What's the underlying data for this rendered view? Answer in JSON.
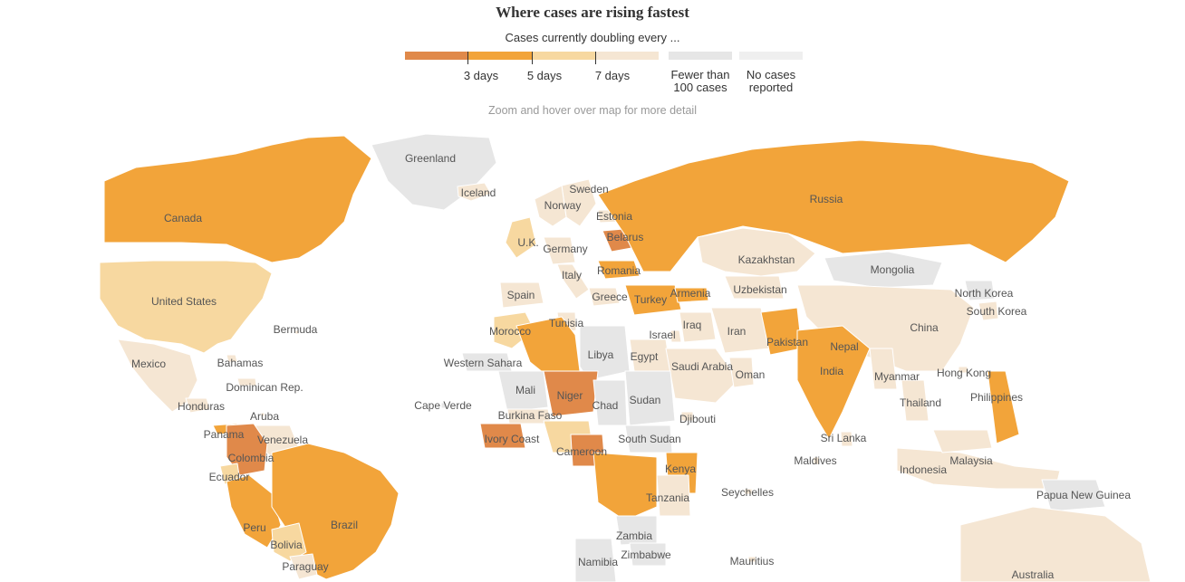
{
  "header": {
    "title": "Where cases are rising fastest",
    "subtitle": "Cases currently doubling every ...",
    "note": "Zoom and hover over map for more detail"
  },
  "legend": {
    "ticks": [
      "3 days",
      "5 days",
      "7 days"
    ],
    "fewer": "Fewer than 100 cases",
    "none": "No cases reported"
  },
  "colors": {
    "darkest": "#e0894a",
    "dark": "#f2a43a",
    "mid": "#f7d8a0",
    "light": "#f5e6d3",
    "gray": "#e6e6e6",
    "none": "#efefef",
    "ocean": "#ffffff"
  },
  "map": {
    "countries": [
      {
        "id": "greenland",
        "label": "Greenland",
        "cat": "gray"
      },
      {
        "id": "iceland",
        "label": "Iceland",
        "cat": "light"
      },
      {
        "id": "canada",
        "label": "Canada",
        "cat": "dark"
      },
      {
        "id": "us",
        "label": "United States",
        "cat": "mid"
      },
      {
        "id": "mexico",
        "label": "Mexico",
        "cat": "light"
      },
      {
        "id": "bermuda",
        "label": "Bermuda",
        "cat": "light"
      },
      {
        "id": "bahamas",
        "label": "Bahamas",
        "cat": "light"
      },
      {
        "id": "dominican",
        "label": "Dominican Rep.",
        "cat": "light"
      },
      {
        "id": "honduras",
        "label": "Honduras",
        "cat": "light"
      },
      {
        "id": "panama",
        "label": "Panama",
        "cat": "dark"
      },
      {
        "id": "aruba",
        "label": "Aruba",
        "cat": "light"
      },
      {
        "id": "venezuela",
        "label": "Venezuela",
        "cat": "light"
      },
      {
        "id": "colombia",
        "label": "Colombia",
        "cat": "darkest"
      },
      {
        "id": "ecuador",
        "label": "Ecuador",
        "cat": "mid"
      },
      {
        "id": "peru",
        "label": "Peru",
        "cat": "dark"
      },
      {
        "id": "brazil",
        "label": "Brazil",
        "cat": "dark"
      },
      {
        "id": "bolivia",
        "label": "Bolivia",
        "cat": "mid"
      },
      {
        "id": "paraguay",
        "label": "Paraguay",
        "cat": "light"
      },
      {
        "id": "uk",
        "label": "U.K.",
        "cat": "mid"
      },
      {
        "id": "sweden",
        "label": "Sweden",
        "cat": "light"
      },
      {
        "id": "norway",
        "label": "Norway",
        "cat": "light"
      },
      {
        "id": "estonia",
        "label": "Estonia",
        "cat": "light"
      },
      {
        "id": "belarus",
        "label": "Belarus",
        "cat": "darkest"
      },
      {
        "id": "germany",
        "label": "Germany",
        "cat": "light"
      },
      {
        "id": "italy",
        "label": "Italy",
        "cat": "light"
      },
      {
        "id": "romania",
        "label": "Romania",
        "cat": "dark"
      },
      {
        "id": "spain",
        "label": "Spain",
        "cat": "light"
      },
      {
        "id": "greece",
        "label": "Greece",
        "cat": "light"
      },
      {
        "id": "turkey",
        "label": "Turkey",
        "cat": "dark"
      },
      {
        "id": "armenia",
        "label": "Armenia",
        "cat": "dark"
      },
      {
        "id": "russia",
        "label": "Russia",
        "cat": "dark"
      },
      {
        "id": "kazakhstan",
        "label": "Kazakhstan",
        "cat": "light"
      },
      {
        "id": "mongolia",
        "label": "Mongolia",
        "cat": "gray"
      },
      {
        "id": "uzbekistan",
        "label": "Uzbekistan",
        "cat": "light"
      },
      {
        "id": "northkorea",
        "label": "North Korea",
        "cat": "gray"
      },
      {
        "id": "southkorea",
        "label": "South Korea",
        "cat": "light"
      },
      {
        "id": "china",
        "label": "China",
        "cat": "light"
      },
      {
        "id": "morocco",
        "label": "Morocco",
        "cat": "mid"
      },
      {
        "id": "tunisia",
        "label": "Tunisia",
        "cat": "light"
      },
      {
        "id": "algeria",
        "label": "",
        "cat": "dark"
      },
      {
        "id": "libya",
        "label": "Libya",
        "cat": "gray"
      },
      {
        "id": "egypt",
        "label": "Egypt",
        "cat": "light"
      },
      {
        "id": "israel",
        "label": "Israel",
        "cat": "light"
      },
      {
        "id": "iraq",
        "label": "Iraq",
        "cat": "light"
      },
      {
        "id": "iran",
        "label": "Iran",
        "cat": "light"
      },
      {
        "id": "pakistan",
        "label": "Pakistan",
        "cat": "dark"
      },
      {
        "id": "nepal",
        "label": "Nepal",
        "cat": "light"
      },
      {
        "id": "india",
        "label": "India",
        "cat": "dark"
      },
      {
        "id": "saudi",
        "label": "Saudi Arabia",
        "cat": "light"
      },
      {
        "id": "oman",
        "label": "Oman",
        "cat": "light"
      },
      {
        "id": "myanmar",
        "label": "Myanmar",
        "cat": "light"
      },
      {
        "id": "hongkong",
        "label": "Hong Kong",
        "cat": "light"
      },
      {
        "id": "thailand",
        "label": "Thailand",
        "cat": "light"
      },
      {
        "id": "philippines",
        "label": "Philippines",
        "cat": "dark"
      },
      {
        "id": "westernsahara",
        "label": "Western Sahara",
        "cat": "gray"
      },
      {
        "id": "mali",
        "label": "Mali",
        "cat": "gray"
      },
      {
        "id": "niger",
        "label": "Niger",
        "cat": "darkest"
      },
      {
        "id": "chad",
        "label": "Chad",
        "cat": "gray"
      },
      {
        "id": "sudan",
        "label": "Sudan",
        "cat": "gray"
      },
      {
        "id": "capeverde",
        "label": "Cape Verde",
        "cat": "gray"
      },
      {
        "id": "burkina",
        "label": "Burkina Faso",
        "cat": "light"
      },
      {
        "id": "nigeria",
        "label": "",
        "cat": "mid"
      },
      {
        "id": "djibouti",
        "label": "Djibouti",
        "cat": "light"
      },
      {
        "id": "ivorycoast",
        "label": "Ivory Coast",
        "cat": "darkest"
      },
      {
        "id": "cameroon",
        "label": "Cameroon",
        "cat": "darkest"
      },
      {
        "id": "southsudan",
        "label": "South Sudan",
        "cat": "gray"
      },
      {
        "id": "kenya",
        "label": "Kenya",
        "cat": "dark"
      },
      {
        "id": "drc",
        "label": "",
        "cat": "dark"
      },
      {
        "id": "tanzania",
        "label": "Tanzania",
        "cat": "light"
      },
      {
        "id": "zambia",
        "label": "Zambia",
        "cat": "gray"
      },
      {
        "id": "zimbabwe",
        "label": "Zimbabwe",
        "cat": "gray"
      },
      {
        "id": "namibia",
        "label": "Namibia",
        "cat": "gray"
      },
      {
        "id": "srilanka",
        "label": "Sri Lanka",
        "cat": "light"
      },
      {
        "id": "maldives",
        "label": "Maldives",
        "cat": "light"
      },
      {
        "id": "seychelles",
        "label": "Seychelles",
        "cat": "light"
      },
      {
        "id": "mauritius",
        "label": "Mauritius",
        "cat": "light"
      },
      {
        "id": "indonesia",
        "label": "Indonesia",
        "cat": "light"
      },
      {
        "id": "malaysia",
        "label": "Malaysia",
        "cat": "light"
      },
      {
        "id": "png",
        "label": "Papua New Guinea",
        "cat": "gray"
      },
      {
        "id": "australia",
        "label": "Australia",
        "cat": "light"
      }
    ]
  }
}
